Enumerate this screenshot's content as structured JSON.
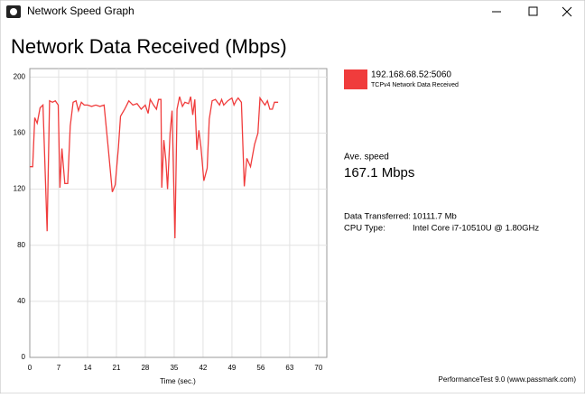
{
  "window": {
    "title": "Network Speed Graph"
  },
  "chart_data": {
    "type": "line",
    "title": "Network Data Received (Mbps)",
    "x_label": "Time (sec.)",
    "x": [
      0,
      0.7,
      1.2,
      1.8,
      2.5,
      3.2,
      4.2,
      4.8,
      5.5,
      6.2,
      6.9,
      7.3,
      7.8,
      8.5,
      9.2,
      9.8,
      10.5,
      11.2,
      11.8,
      12.5,
      13.2,
      14,
      15,
      16,
      17,
      18,
      19,
      20,
      20.7,
      21.5,
      22,
      23,
      23.5,
      24,
      25,
      26,
      27,
      28,
      28.7,
      29.2,
      30,
      30.7,
      31.2,
      31.8,
      32,
      32.5,
      33,
      33.4,
      34,
      34.5,
      35.2,
      35.7,
      36.3,
      37,
      37.6,
      38.5,
      39,
      39.5,
      40,
      40.5,
      41,
      41.5,
      42.2,
      43,
      43.5,
      44.2,
      45,
      46,
      46.5,
      47,
      48,
      49,
      49.5,
      50,
      50.5,
      51.3,
      52,
      52.6,
      53.5,
      54.5,
      55.3,
      55.8,
      56.5,
      57,
      57.6,
      58.2,
      58.8,
      59.3,
      60.2
    ],
    "series": [
      {
        "name": "192.168.68.52:5060",
        "color": "#f03c3c",
        "values": [
          136,
          136,
          171,
          167,
          178,
          180,
          90,
          183,
          182,
          183,
          180,
          121,
          149,
          124,
          124,
          165,
          182,
          183,
          176,
          182,
          180,
          180,
          179,
          180,
          179,
          180,
          150,
          118,
          123,
          150,
          172,
          177,
          180,
          183,
          180,
          181,
          177,
          180,
          174,
          184,
          180,
          177,
          184,
          184,
          121,
          155,
          140,
          120,
          160,
          176,
          85,
          177,
          186,
          179,
          182,
          181,
          186,
          173,
          184,
          148,
          162,
          150,
          126,
          135,
          170,
          183,
          184,
          180,
          184,
          180,
          183,
          185,
          180,
          183,
          185,
          182,
          122,
          142,
          136,
          152,
          160,
          185,
          182,
          180,
          183,
          177,
          177,
          182,
          182
        ]
      }
    ],
    "legend_subtitle": "TCPv4 Network Data Received",
    "xlim": [
      0,
      72
    ],
    "ylim": [
      0,
      206
    ],
    "xticks": [
      0,
      7,
      14,
      21,
      28,
      35,
      42,
      49,
      56,
      63,
      70
    ],
    "yticks": [
      0,
      40,
      80,
      120,
      160,
      200
    ],
    "grid": true
  },
  "stats": {
    "avg_label": "Ave. speed",
    "avg_value": "167.1 Mbps",
    "rows": [
      [
        "Data Transferred:",
        "10111.7 Mb"
      ],
      [
        "CPU Type:",
        "Intel Core i7-10510U @ 1.80GHz"
      ]
    ]
  },
  "footer": "PerformanceTest 9.0 (www.passmark.com)"
}
